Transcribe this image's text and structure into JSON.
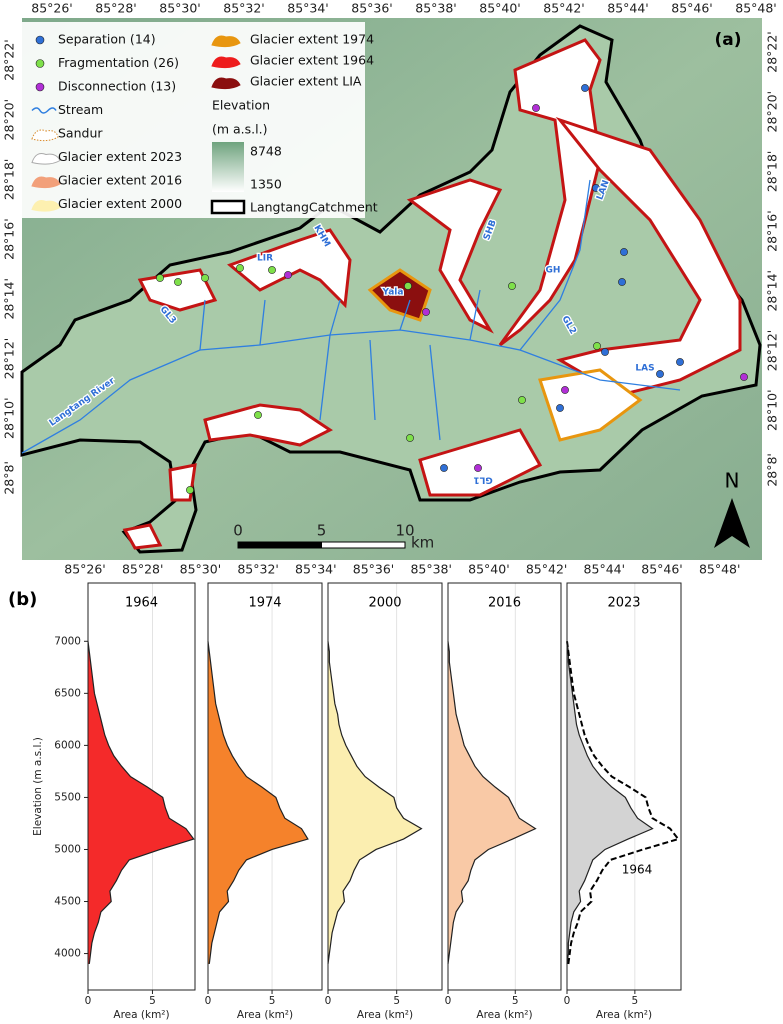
{
  "map": {
    "label": "(a)",
    "lon_labels": [
      "85°26'",
      "85°28'",
      "85°30'",
      "85°32'",
      "85°34'",
      "85°36'",
      "85°38'",
      "85°40'",
      "85°42'",
      "85°44'",
      "85°46'",
      "85°48'"
    ],
    "lat_labels": [
      "28°22'",
      "28°20'",
      "28°18'",
      "28°16'",
      "28°14'",
      "28°12'",
      "28°10'",
      "28°8'"
    ],
    "legend": [
      {
        "label": "Separation (14)",
        "symbol": "dot",
        "color": "#2f6fd6"
      },
      {
        "label": "Fragmentation (26)",
        "symbol": "dot",
        "color": "#7ee04a"
      },
      {
        "label": "Disconnection (13)",
        "symbol": "dot",
        "color": "#b12fd6"
      },
      {
        "label": "Stream",
        "symbol": "stream",
        "color": "#2f7fe0"
      },
      {
        "label": "Sandur",
        "symbol": "dotted",
        "color": "#d98a2b"
      },
      {
        "label": "Glacier extent 2023",
        "symbol": "patch",
        "color": "#ffffff"
      },
      {
        "label": "Glacier extent 2016",
        "symbol": "patch",
        "color": "#f2a07a"
      },
      {
        "label": "Glacier extent 2000",
        "symbol": "patch",
        "color": "#fdf0b0"
      },
      {
        "label": "Glacier extent 1974",
        "symbol": "patch",
        "color": "#e8960f"
      },
      {
        "label": "Glacier extent 1964",
        "symbol": "patch",
        "color": "#ee1c1c"
      },
      {
        "label": "Glacier extent LIA",
        "symbol": "patch",
        "color": "#8b0f0f"
      }
    ],
    "elevation_legend": {
      "title": "Elevation",
      "unit": "(m a.s.l.)",
      "max": 8748,
      "min": 1350
    },
    "catchment_label": "LangtangCatchment",
    "place_labels": [
      "LIR",
      "KHM",
      "Yala",
      "SHB",
      "LAN",
      "GH",
      "GL2",
      "LAS",
      "GL1",
      "GL3",
      "Langtang River"
    ],
    "north": "N",
    "scale": {
      "ticks": [
        0,
        5,
        10
      ],
      "unit": "km"
    }
  },
  "panel_b_label": "(b)",
  "chart_data": [
    {
      "type": "area",
      "orientation": "horizontal",
      "title": "1964",
      "xlabel": "Elevation (m a.s.l.)",
      "ylabel": "Area (km²)",
      "x": [
        3900,
        4000,
        4100,
        4200,
        4300,
        4400,
        4500,
        4600,
        4700,
        4800,
        4900,
        5000,
        5100,
        5200,
        5300,
        5400,
        5500,
        5600,
        5700,
        5800,
        5900,
        6000,
        6100,
        6200,
        6300,
        6400,
        6500,
        6600,
        6700,
        6800,
        6900,
        7000
      ],
      "xlim": [
        3650,
        7560
      ],
      "xticks": [
        4000,
        4500,
        5000,
        5500,
        6000,
        6500,
        7000
      ],
      "ylim": [
        0,
        8.3
      ],
      "yticks": [
        0,
        5
      ],
      "grid": true,
      "series": [
        {
          "color": "#f42a2a",
          "fill": true,
          "values": [
            0.1,
            0.2,
            0.3,
            0.5,
            0.8,
            1.0,
            1.8,
            1.7,
            2.2,
            2.6,
            3.2,
            5.6,
            8.2,
            7.6,
            6.3,
            6.0,
            5.8,
            4.6,
            3.3,
            2.6,
            2.0,
            1.6,
            1.3,
            1.1,
            0.9,
            0.7,
            0.5,
            0.4,
            0.3,
            0.2,
            0.1,
            0.0
          ]
        }
      ]
    },
    {
      "type": "area",
      "orientation": "horizontal",
      "title": "1974",
      "ylabel": "Area (km²)",
      "x": [
        3900,
        4000,
        4100,
        4200,
        4300,
        4400,
        4500,
        4600,
        4700,
        4800,
        4900,
        5000,
        5100,
        5200,
        5300,
        5400,
        5500,
        5600,
        5700,
        5800,
        5900,
        6000,
        6100,
        6200,
        6300,
        6400,
        6500,
        6600,
        6700,
        6800,
        6900,
        7000
      ],
      "xlim": [
        3650,
        7560
      ],
      "ylim": [
        0,
        8.9
      ],
      "yticks": [
        0,
        5
      ],
      "grid": true,
      "series": [
        {
          "color": "#f5822b",
          "fill": true,
          "values": [
            0.1,
            0.2,
            0.3,
            0.5,
            0.7,
            0.9,
            1.6,
            1.5,
            2.0,
            2.4,
            3.0,
            5.0,
            7.8,
            7.3,
            6.0,
            5.6,
            5.3,
            4.2,
            3.0,
            2.4,
            1.9,
            1.5,
            1.2,
            1.0,
            0.8,
            0.6,
            0.5,
            0.4,
            0.3,
            0.2,
            0.1,
            0.0
          ]
        }
      ]
    },
    {
      "type": "area",
      "orientation": "horizontal",
      "title": "2000",
      "ylabel": "Area (km²)",
      "x": [
        3900,
        4000,
        4100,
        4200,
        4300,
        4400,
        4500,
        4600,
        4700,
        4800,
        4900,
        5000,
        5100,
        5200,
        5300,
        5400,
        5500,
        5600,
        5700,
        5800,
        5900,
        6000,
        6100,
        6200,
        6300,
        6400,
        6500,
        6600,
        6700,
        6800,
        6900,
        7000
      ],
      "xlim": [
        3650,
        7560
      ],
      "ylim": [
        0,
        8.3
      ],
      "yticks": [
        0,
        5
      ],
      "grid": true,
      "series": [
        {
          "color": "#fbeeb0",
          "fill": true,
          "values": [
            0.0,
            0.1,
            0.2,
            0.3,
            0.5,
            0.7,
            1.2,
            1.1,
            1.6,
            1.9,
            2.3,
            3.5,
            5.5,
            6.8,
            5.5,
            5.0,
            4.8,
            3.7,
            2.7,
            2.1,
            1.7,
            1.3,
            1.0,
            0.8,
            0.7,
            0.5,
            0.4,
            0.3,
            0.2,
            0.1,
            0.1,
            0.0
          ]
        }
      ]
    },
    {
      "type": "area",
      "orientation": "horizontal",
      "title": "2016",
      "ylabel": "Area (km²)",
      "x": [
        3900,
        4000,
        4100,
        4200,
        4300,
        4400,
        4500,
        4600,
        4700,
        4800,
        4900,
        5000,
        5100,
        5200,
        5300,
        5400,
        5500,
        5600,
        5700,
        5800,
        5900,
        6000,
        6100,
        6200,
        6300,
        6400,
        6500,
        6600,
        6700,
        6800,
        6900,
        7000
      ],
      "xlim": [
        3650,
        7560
      ],
      "ylim": [
        0,
        8.4
      ],
      "yticks": [
        0,
        5
      ],
      "grid": true,
      "series": [
        {
          "color": "#f9c9a6",
          "fill": true,
          "values": [
            0.0,
            0.1,
            0.2,
            0.3,
            0.4,
            0.6,
            1.1,
            1.0,
            1.5,
            1.7,
            2.0,
            3.0,
            4.8,
            6.5,
            5.3,
            4.9,
            4.5,
            3.5,
            2.6,
            2.0,
            1.6,
            1.2,
            1.0,
            0.8,
            0.6,
            0.5,
            0.4,
            0.3,
            0.2,
            0.1,
            0.1,
            0.0
          ]
        }
      ]
    },
    {
      "type": "area",
      "orientation": "horizontal",
      "title": "2023",
      "ylabel": "Area (km²)",
      "annotation": "1964",
      "x": [
        3900,
        4000,
        4100,
        4200,
        4300,
        4400,
        4500,
        4600,
        4700,
        4800,
        4900,
        5000,
        5100,
        5200,
        5300,
        5400,
        5500,
        5600,
        5700,
        5800,
        5900,
        6000,
        6100,
        6200,
        6300,
        6400,
        6500,
        6600,
        6700,
        6800,
        6900,
        7000
      ],
      "xlim": [
        3650,
        7560
      ],
      "ylim": [
        0,
        8.4
      ],
      "yticks": [
        0,
        5
      ],
      "grid": true,
      "series": [
        {
          "color": "#d3d3d3",
          "fill": true,
          "values": [
            0.0,
            0.1,
            0.1,
            0.2,
            0.3,
            0.5,
            1.0,
            0.9,
            1.3,
            1.6,
            1.9,
            2.8,
            4.5,
            6.3,
            5.2,
            4.7,
            4.3,
            3.3,
            2.5,
            1.9,
            1.5,
            1.2,
            0.9,
            0.7,
            0.6,
            0.5,
            0.4,
            0.3,
            0.2,
            0.1,
            0.1,
            0.0
          ]
        },
        {
          "color": "#000000",
          "fill": false,
          "dashed": true,
          "values": [
            0.1,
            0.2,
            0.3,
            0.5,
            0.8,
            1.0,
            1.8,
            1.7,
            2.2,
            2.6,
            3.2,
            5.6,
            8.2,
            7.6,
            6.3,
            6.0,
            5.8,
            4.6,
            3.3,
            2.6,
            2.0,
            1.6,
            1.3,
            1.1,
            0.9,
            0.7,
            0.5,
            0.4,
            0.3,
            0.2,
            0.1,
            0.0
          ]
        }
      ]
    }
  ]
}
